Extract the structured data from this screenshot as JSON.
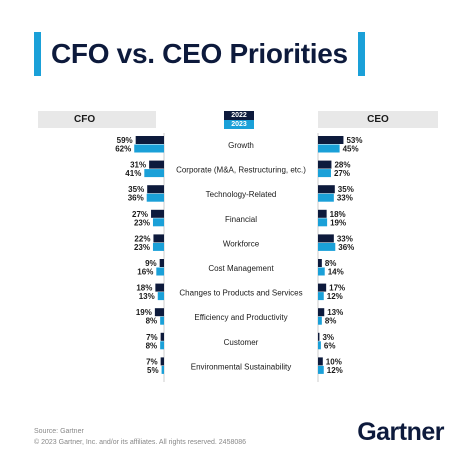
{
  "header": {
    "title": "CFO vs. CEO Priorities"
  },
  "columns": {
    "left": "CFO",
    "right": "CEO"
  },
  "legend": {
    "year_2022": "2022",
    "year_2023": "2023"
  },
  "colors": {
    "dark": "#0d1a3c",
    "light": "#1aa0d8",
    "band": "#e8e8e8"
  },
  "footer": {
    "source": "Source: Gartner",
    "copyright": "© 2023 Gartner, Inc. and/or its affiliates. All rights reserved. 2458086",
    "logo": "Gartner"
  },
  "chart_data": {
    "type": "bar",
    "categories": [
      "Growth",
      "Corporate (M&A, Restructuring, etc.)",
      "Technology-Related",
      "Financial",
      "Workforce",
      "Cost Management",
      "Changes to Products and Services",
      "Efficiency and Productivity",
      "Customer",
      "Environmental Sustainability"
    ],
    "series": [
      {
        "name": "CFO 2022",
        "values": [
          59,
          31,
          35,
          27,
          22,
          9,
          18,
          19,
          7,
          7
        ]
      },
      {
        "name": "CFO 2023",
        "values": [
          62,
          41,
          36,
          23,
          23,
          16,
          13,
          8,
          8,
          5
        ]
      },
      {
        "name": "CEO 2022",
        "values": [
          53,
          28,
          35,
          18,
          33,
          8,
          17,
          13,
          3,
          10
        ]
      },
      {
        "name": "CEO 2023",
        "values": [
          45,
          27,
          33,
          19,
          36,
          14,
          12,
          8,
          6,
          12
        ]
      }
    ],
    "label_suffix": "%"
  }
}
